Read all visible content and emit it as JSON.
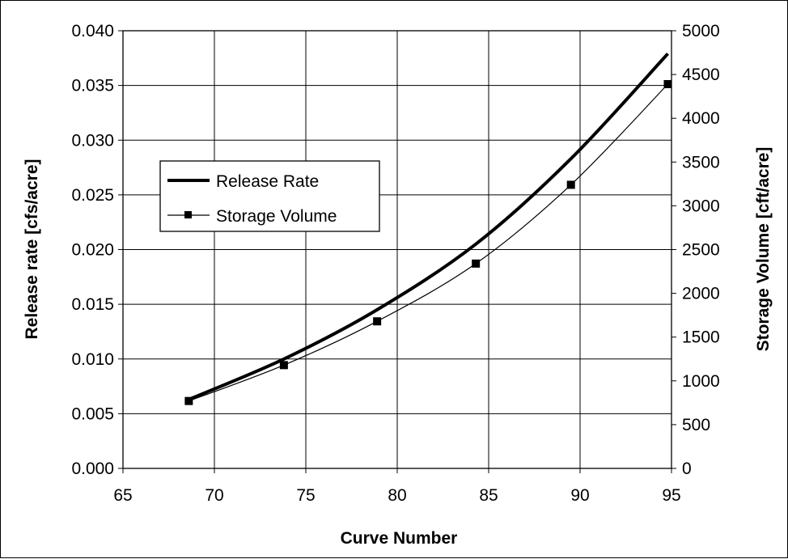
{
  "chart_data": {
    "type": "line",
    "title": "",
    "xlabel": "Curve Number",
    "ylabel_left": "Release rate [cfs/acre]",
    "ylabel_right": "Storage Volume [cft/acre]",
    "xlim": [
      65,
      95
    ],
    "ylim_left": [
      0,
      0.04
    ],
    "ylim_right": [
      0,
      5000
    ],
    "x_ticks": [
      "65",
      "70",
      "75",
      "80",
      "85",
      "90",
      "95"
    ],
    "y_left_ticks": [
      "0.000",
      "0.005",
      "0.010",
      "0.015",
      "0.020",
      "0.025",
      "0.030",
      "0.035",
      "0.040"
    ],
    "y_right_ticks": [
      "0",
      "500",
      "1000",
      "1500",
      "2000",
      "2500",
      "3000",
      "3500",
      "4000",
      "4500",
      "5000"
    ],
    "grid": true,
    "legend_position": "middle-left",
    "series": [
      {
        "name": "Release Rate",
        "axis": "left",
        "x": [
          68.6,
          73.8,
          78.9,
          84.3,
          89.5,
          94.8
        ],
        "values": [
          0.0063,
          0.01,
          0.0145,
          0.0205,
          0.0283,
          0.0379
        ],
        "color": "#000000",
        "style": "thick-line"
      },
      {
        "name": "Storage Volume",
        "axis": "right",
        "x": [
          68.6,
          73.8,
          78.9,
          84.3,
          89.5,
          94.8
        ],
        "values": [
          770,
          1180,
          1680,
          2340,
          3240,
          4390
        ],
        "color": "#000000",
        "style": "thin-line-square-markers"
      }
    ]
  }
}
